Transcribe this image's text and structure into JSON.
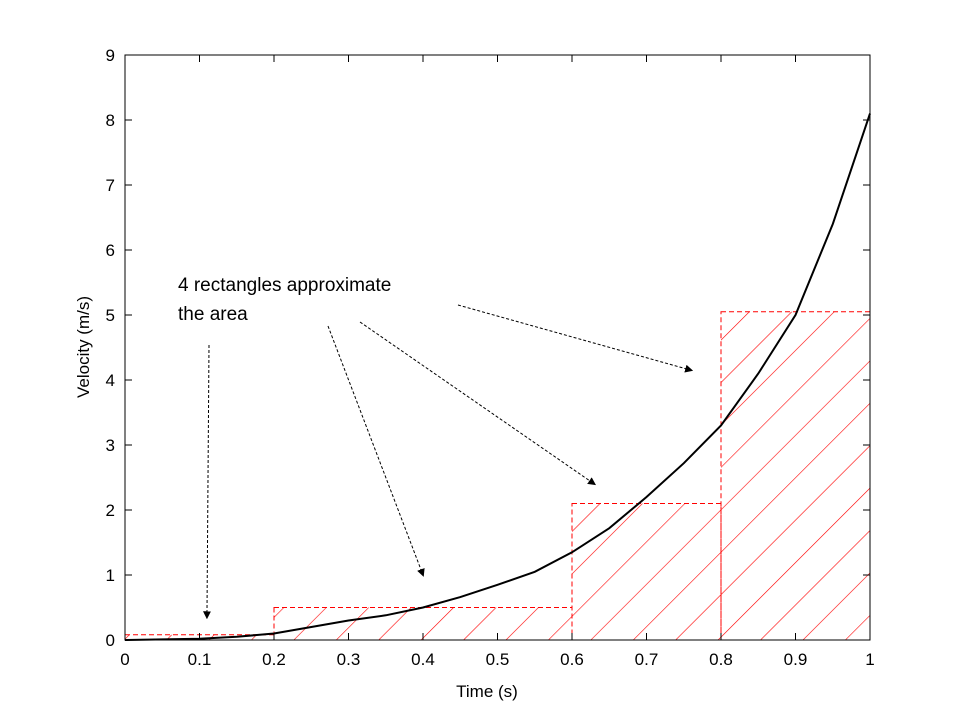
{
  "chart_data": {
    "type": "line",
    "title": "",
    "xlabel": "Time (s)",
    "ylabel": "Velocity (m/s)",
    "xlim": [
      0,
      1
    ],
    "ylim": [
      0,
      9
    ],
    "xticks": [
      "0",
      "0.1",
      "0.2",
      "0.3",
      "0.4",
      "0.5",
      "0.6",
      "0.7",
      "0.8",
      "0.9",
      "1"
    ],
    "yticks": [
      "0",
      "1",
      "2",
      "3",
      "4",
      "5",
      "6",
      "7",
      "8",
      "9"
    ],
    "grid": false,
    "series": [
      {
        "color": "#000000",
        "x": [
          0,
          0.05,
          0.1,
          0.15,
          0.2,
          0.25,
          0.3,
          0.35,
          0.4,
          0.45,
          0.5,
          0.55,
          0.6,
          0.65,
          0.7,
          0.75,
          0.8,
          0.85,
          0.9,
          0.95,
          1.0
        ],
        "y": [
          0,
          0.01,
          0.02,
          0.05,
          0.1,
          0.2,
          0.3,
          0.38,
          0.5,
          0.66,
          0.85,
          1.05,
          1.35,
          1.72,
          2.2,
          2.72,
          3.3,
          4.1,
          5.0,
          6.4,
          8.1
        ]
      }
    ],
    "rectangles": {
      "color": "#ff0000",
      "items": [
        {
          "x0": 0.0,
          "x1": 0.2,
          "height": 0.08
        },
        {
          "x0": 0.2,
          "x1": 0.6,
          "height": 0.5
        },
        {
          "x0": 0.6,
          "x1": 0.8,
          "height": 2.1
        },
        {
          "x0": 0.8,
          "x1": 1.0,
          "height": 5.05
        }
      ]
    },
    "annotations": [
      {
        "lines": [
          "4 rectangles approximate",
          "the area"
        ],
        "arrow_targets": [
          {
            "x": 0.11,
            "y": 0.35
          },
          {
            "x": 0.4,
            "y": 1.0
          },
          {
            "x": 0.63,
            "y": 2.4
          },
          {
            "x": 0.76,
            "y": 4.15
          }
        ]
      }
    ]
  }
}
